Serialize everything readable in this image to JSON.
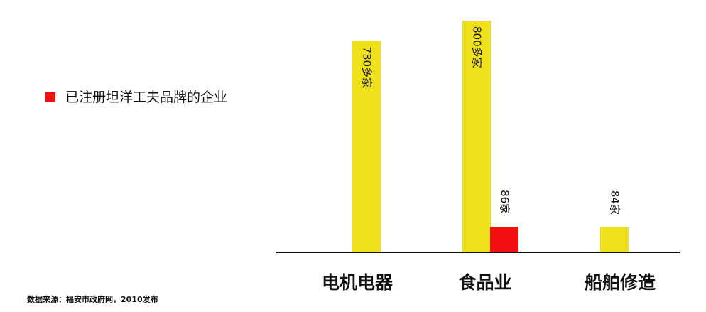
{
  "colors": {
    "yellow": "#eee01a",
    "red": "#f01010",
    "axis": "#111111"
  },
  "legend": {
    "label": "已注册坦洋工夫品牌的企业",
    "color": "#f01010"
  },
  "source": "数据来源：福安市政府网，2010发布",
  "chart_data": {
    "type": "bar",
    "categories": [
      "电机电器",
      "食品业",
      "船舶修造"
    ],
    "bars": [
      {
        "category": "电机电器",
        "value": 730,
        "color": "#eee01a",
        "label": "730多家",
        "label_style": "inside-rotated"
      },
      {
        "category": "食品业",
        "value": 800,
        "color": "#eee01a",
        "label": "800多家",
        "label_style": "inside-rotated"
      },
      {
        "category": "食品业",
        "value": 86,
        "color": "#f01010",
        "label": "86家",
        "label_style": "above-rotated"
      },
      {
        "category": "船舶修造",
        "value": 84,
        "color": "#eee01a",
        "label": "84家",
        "label_style": "above-rotated"
      }
    ],
    "ylim": [
      0,
      800
    ],
    "grid": false,
    "legend_position": "left"
  }
}
